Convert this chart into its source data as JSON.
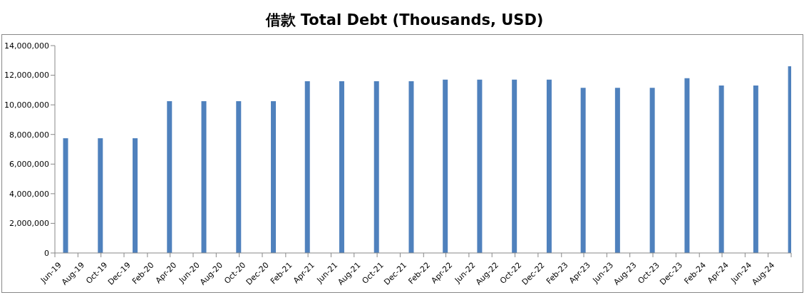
{
  "chart_data": {
    "type": "bar",
    "title": "借款 Total Debt (Thousands, USD)",
    "x": [
      "2019-06-30",
      "2019-09-30",
      "2019-12-31",
      "2020-03-31",
      "2020-06-30",
      "2020-09-30",
      "2020-12-31",
      "2021-03-31",
      "2021-06-30",
      "2021-09-30",
      "2021-12-31",
      "2022-03-31",
      "2022-06-30",
      "2022-09-30",
      "2022-12-31",
      "2023-03-31",
      "2023-06-30",
      "2023-09-30",
      "2023-12-31",
      "2024-03-31",
      "2024-06-30",
      "2024-09-30"
    ],
    "values": [
      7750000,
      7750000,
      7750000,
      10250000,
      10250000,
      10250000,
      10250000,
      11600000,
      11600000,
      11600000,
      11600000,
      11700000,
      11700000,
      11700000,
      11700000,
      11150000,
      11150000,
      11150000,
      11800000,
      11300000,
      11300000,
      12600000
    ],
    "color": "#4f81bd",
    "xlim": [
      "2019-06-01",
      "2024-10-01"
    ],
    "xticks": [
      {
        "value": "2019-06-01",
        "label": "Jun-19"
      },
      {
        "value": "2019-08-01",
        "label": "Aug-19"
      },
      {
        "value": "2019-10-01",
        "label": "Oct-19"
      },
      {
        "value": "2019-12-01",
        "label": "Dec-19"
      },
      {
        "value": "2020-02-01",
        "label": "Feb-20"
      },
      {
        "value": "2020-04-01",
        "label": "Apr-20"
      },
      {
        "value": "2020-06-01",
        "label": "Jun-20"
      },
      {
        "value": "2020-08-01",
        "label": "Aug-20"
      },
      {
        "value": "2020-10-01",
        "label": "Oct-20"
      },
      {
        "value": "2020-12-01",
        "label": "Dec-20"
      },
      {
        "value": "2021-02-01",
        "label": "Feb-21"
      },
      {
        "value": "2021-04-01",
        "label": "Apr-21"
      },
      {
        "value": "2021-06-01",
        "label": "Jun-21"
      },
      {
        "value": "2021-08-01",
        "label": "Aug-21"
      },
      {
        "value": "2021-10-01",
        "label": "Oct-21"
      },
      {
        "value": "2021-12-01",
        "label": "Dec-21"
      },
      {
        "value": "2022-02-01",
        "label": "Feb-22"
      },
      {
        "value": "2022-04-01",
        "label": "Apr-22"
      },
      {
        "value": "2022-06-01",
        "label": "Jun-22"
      },
      {
        "value": "2022-08-01",
        "label": "Aug-22"
      },
      {
        "value": "2022-10-01",
        "label": "Oct-22"
      },
      {
        "value": "2022-12-01",
        "label": "Dec-22"
      },
      {
        "value": "2023-02-01",
        "label": "Feb-23"
      },
      {
        "value": "2023-04-01",
        "label": "Apr-23"
      },
      {
        "value": "2023-06-01",
        "label": "Jun-23"
      },
      {
        "value": "2023-08-01",
        "label": "Aug-23"
      },
      {
        "value": "2023-10-01",
        "label": "Oct-23"
      },
      {
        "value": "2023-12-01",
        "label": "Dec-23"
      },
      {
        "value": "2024-02-01",
        "label": "Feb-24"
      },
      {
        "value": "2024-04-01",
        "label": "Apr-24"
      },
      {
        "value": "2024-06-01",
        "label": "Jun-24"
      },
      {
        "value": "2024-08-01",
        "label": "Aug-24"
      },
      {
        "value": "2024-10-01",
        "label": null
      }
    ],
    "ylim": [
      0,
      14000000
    ],
    "yticks": [
      {
        "value": 0,
        "label": "0"
      },
      {
        "value": 2000000,
        "label": "2,000,000"
      },
      {
        "value": 4000000,
        "label": "4,000,000"
      },
      {
        "value": 6000000,
        "label": "6,000,000"
      },
      {
        "value": 8000000,
        "label": "8,000,000"
      },
      {
        "value": 10000000,
        "label": "10,000,000"
      },
      {
        "value": 12000000,
        "label": "12,000,000"
      },
      {
        "value": 14000000,
        "label": "14,000,000"
      }
    ]
  }
}
